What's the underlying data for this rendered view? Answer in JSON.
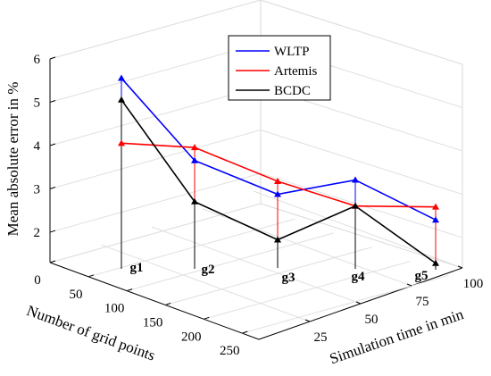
{
  "chart_data": {
    "type": "line3d",
    "xlabel": "Simulation time in min",
    "ylabel": "Number of grid points",
    "zlabel": "Mean absolute error in %",
    "x_ticks": [
      "25",
      "50",
      "75",
      "100"
    ],
    "y_ticks": [
      "0",
      "50",
      "100",
      "150",
      "200",
      "250"
    ],
    "z_ticks": [
      "2",
      "3",
      "4",
      "5",
      "6"
    ],
    "xlim": [
      0,
      100
    ],
    "ylim": [
      0,
      250
    ],
    "zlim": [
      1.3,
      6
    ],
    "grid": true,
    "legend_position": "top-right",
    "points": [
      "g1",
      "g2",
      "g3",
      "g4",
      "g5"
    ],
    "series": [
      {
        "name": "WLTP",
        "color": "#0000ff",
        "values": [
          5.7,
          3.8,
          3.0,
          3.35,
          2.45
        ]
      },
      {
        "name": "Artemis",
        "color": "#ff0000",
        "values": [
          4.2,
          4.1,
          3.3,
          2.75,
          2.75
        ]
      },
      {
        "name": "BCDC",
        "color": "#000000",
        "values": [
          5.2,
          2.85,
          1.95,
          2.75,
          1.45
        ]
      }
    ]
  }
}
